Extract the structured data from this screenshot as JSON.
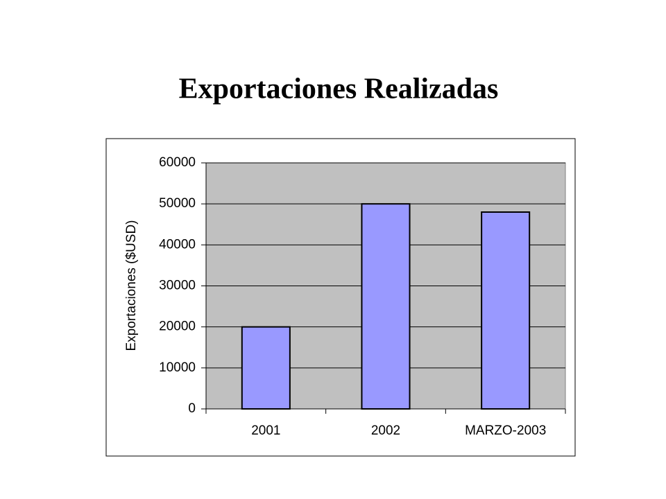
{
  "chart_data": {
    "type": "bar",
    "title": "Exportaciones Realizadas",
    "y_label": "Exportaciones ($USD)",
    "categories": [
      "2001",
      "2002",
      "MARZO-2003"
    ],
    "values": [
      20000,
      50000,
      48000
    ],
    "color": "#9999ff",
    "plot_background": "#c0c0c0",
    "ylim": [
      0,
      60000
    ],
    "yticks": [
      0,
      10000,
      20000,
      30000,
      40000,
      50000,
      60000
    ],
    "grid": true
  }
}
